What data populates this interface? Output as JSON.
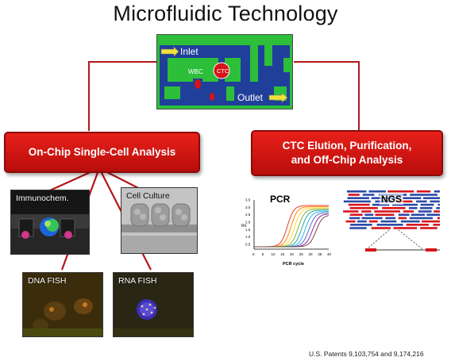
{
  "title": "Microfluidic Technology",
  "chip": {
    "inlet": "Inlet",
    "outlet": "Outlet",
    "wbc": "WBC",
    "ctc": "CTC"
  },
  "left_box": "On-Chip Single-Cell Analysis",
  "right_box_line1": "CTC Elution, Purification,",
  "right_box_line2": "and Off-Chip Analysis",
  "images": {
    "immuno": "Immunochem.",
    "culture": "Cell  Culture",
    "dna": "DNA FISH",
    "rna": "RNA FISH"
  },
  "pcr": {
    "label": "PCR",
    "ylabel": "Rn",
    "xlabel": "PCR cycle",
    "xticks": [
      "0",
      "5",
      "10",
      "15",
      "20",
      "25",
      "30",
      "35",
      "40"
    ],
    "yticks": [
      "0.5",
      "1.0",
      "1.5",
      "2.0",
      "2.5",
      "3.0",
      "3.5"
    ]
  },
  "ngs": {
    "label": "NGS"
  },
  "patent": "U.S. Patents 9,103,754 and 9,174,216",
  "colors": {
    "red": "#d7141a",
    "chip_blue": "#1f3f9a",
    "chip_green": "#2dbf3a"
  }
}
